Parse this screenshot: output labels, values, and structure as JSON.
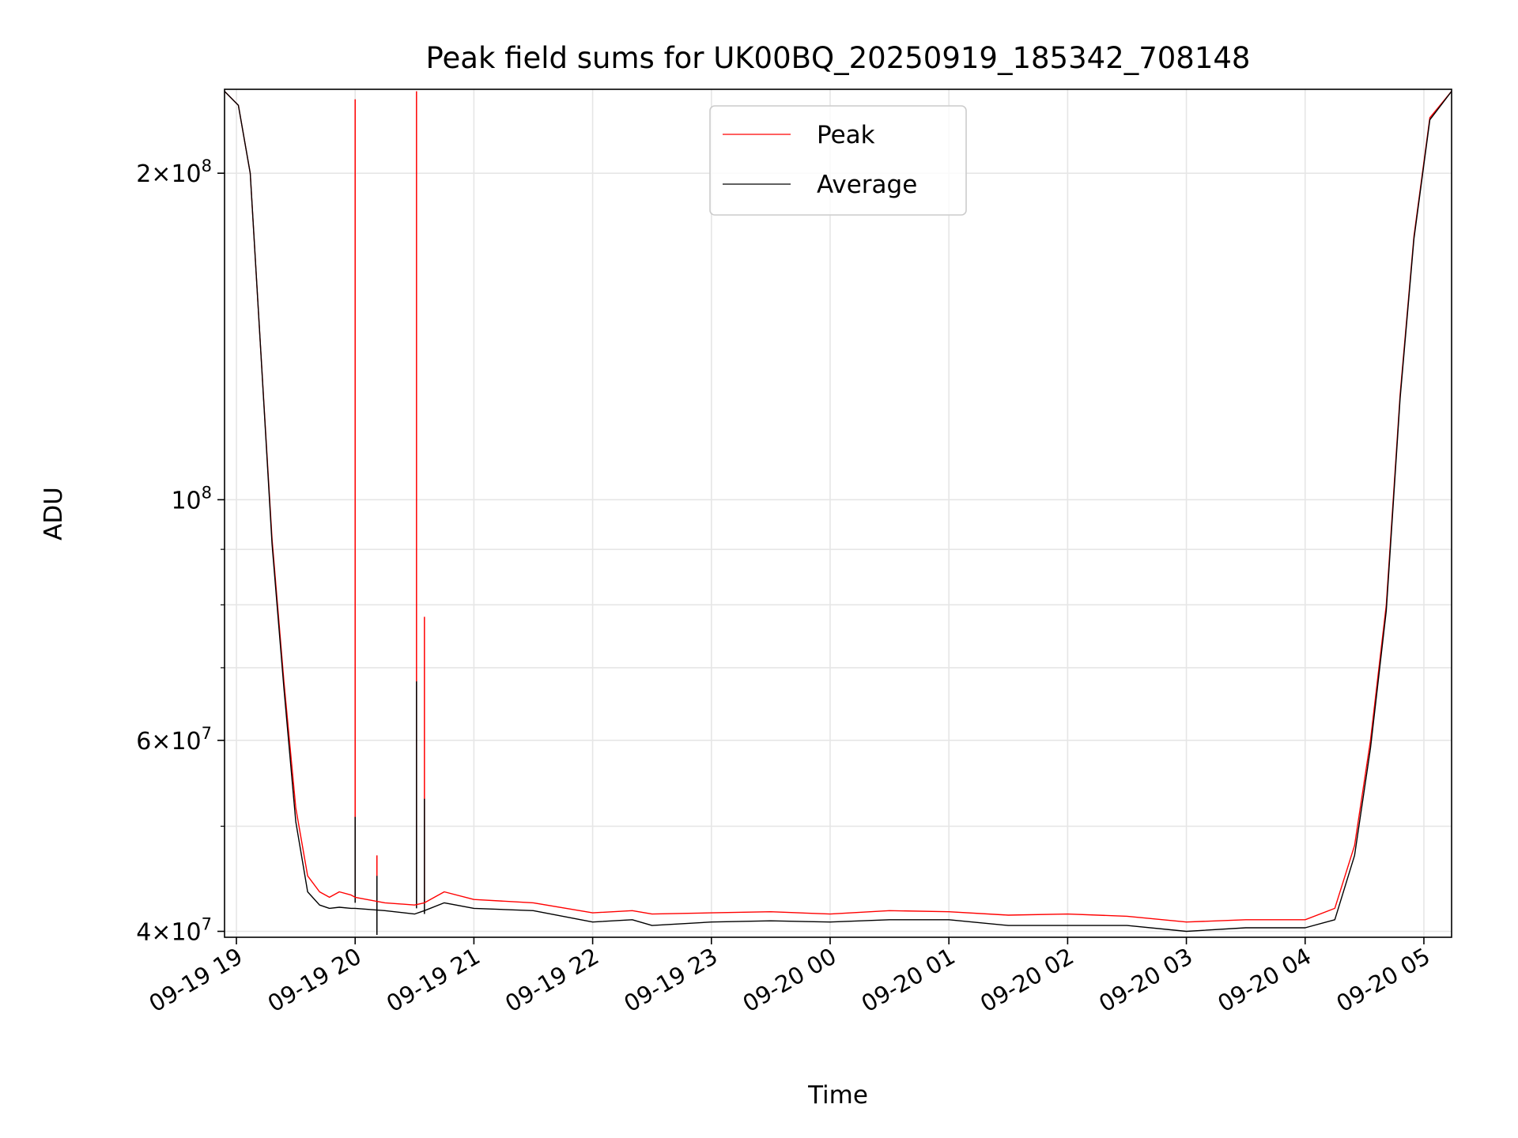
{
  "chart_data": {
    "type": "line",
    "title": "Peak field sums for UK00BQ_20250919_185342_708148",
    "xlabel": "Time",
    "ylabel": "ADU",
    "yscale": "log",
    "grid": true,
    "legend_placement": "upper center",
    "xlim": [
      "2025-09-19 18:54",
      "2025-09-20 05:14"
    ],
    "ylim": [
      39500000,
      239000000
    ],
    "x_ticks": [
      "09-19 19",
      "09-19 20",
      "09-19 21",
      "09-19 22",
      "09-19 23",
      "09-20 00",
      "09-20 01",
      "09-20 02",
      "09-20 03",
      "09-20 04",
      "09-20 05"
    ],
    "y_major_ticks": [
      {
        "value": 40000000,
        "mantissa": "4",
        "exponent": "7"
      },
      {
        "value": 60000000,
        "mantissa": "6",
        "exponent": "7"
      },
      {
        "value": 100000000,
        "mantissa": "",
        "exponent": "8"
      },
      {
        "value": 200000000,
        "mantissa": "2",
        "exponent": "8"
      }
    ],
    "y_minor_ticks": [
      50000000,
      70000000,
      80000000,
      90000000
    ],
    "series": [
      {
        "name": "Peak",
        "color": "#ff0000",
        "x": [
          "2025-09-19 18:54",
          "2025-09-19 19:01",
          "2025-09-19 19:07",
          "2025-09-19 19:12",
          "2025-09-19 19:18",
          "2025-09-19 19:24",
          "2025-09-19 19:30",
          "2025-09-19 19:36",
          "2025-09-19 19:42",
          "2025-09-19 19:47",
          "2025-09-19 19:52",
          "2025-09-19 19:58",
          "2025-09-19 20:00",
          "2025-09-19 20:15",
          "2025-09-19 20:30",
          "2025-09-19 20:35",
          "2025-09-19 20:45",
          "2025-09-19 21:00",
          "2025-09-19 21:30",
          "2025-09-19 22:00",
          "2025-09-19 22:20",
          "2025-09-19 22:30",
          "2025-09-19 23:00",
          "2025-09-19 23:30",
          "2025-09-20 00:00",
          "2025-09-20 00:30",
          "2025-09-20 01:00",
          "2025-09-20 01:30",
          "2025-09-20 02:00",
          "2025-09-20 02:30",
          "2025-09-20 03:00",
          "2025-09-20 03:30",
          "2025-09-20 04:00",
          "2025-09-20 04:15",
          "2025-09-20 04:25",
          "2025-09-20 04:33",
          "2025-09-20 04:41",
          "2025-09-20 04:48",
          "2025-09-20 04:55",
          "2025-09-20 05:03",
          "2025-09-20 05:14"
        ],
        "y": [
          238000000,
          231000000,
          200000000,
          140000000,
          92000000,
          68000000,
          52000000,
          45000000,
          43500000,
          43000000,
          43500000,
          43200000,
          43000000,
          42500000,
          42300000,
          42500000,
          43500000,
          42800000,
          42500000,
          41600000,
          41800000,
          41500000,
          41600000,
          41700000,
          41500000,
          41800000,
          41700000,
          41400000,
          41500000,
          41300000,
          40800000,
          41000000,
          41000000,
          42000000,
          48000000,
          60000000,
          80000000,
          125000000,
          175000000,
          225000000,
          238000000
        ]
      },
      {
        "name": "Average",
        "color": "#000000",
        "x": [
          "2025-09-19 18:54",
          "2025-09-19 19:01",
          "2025-09-19 19:07",
          "2025-09-19 19:12",
          "2025-09-19 19:18",
          "2025-09-19 19:24",
          "2025-09-19 19:30",
          "2025-09-19 19:36",
          "2025-09-19 19:42",
          "2025-09-19 19:47",
          "2025-09-19 19:52",
          "2025-09-19 19:58",
          "2025-09-19 20:00",
          "2025-09-19 20:15",
          "2025-09-19 20:30",
          "2025-09-19 20:35",
          "2025-09-19 20:45",
          "2025-09-19 21:00",
          "2025-09-19 21:30",
          "2025-09-19 22:00",
          "2025-09-19 22:20",
          "2025-09-19 22:30",
          "2025-09-19 23:00",
          "2025-09-19 23:30",
          "2025-09-20 00:00",
          "2025-09-20 00:30",
          "2025-09-20 01:00",
          "2025-09-20 01:30",
          "2025-09-20 02:00",
          "2025-09-20 02:30",
          "2025-09-20 03:00",
          "2025-09-20 03:30",
          "2025-09-20 04:00",
          "2025-09-20 04:15",
          "2025-09-20 04:25",
          "2025-09-20 04:33",
          "2025-09-20 04:41",
          "2025-09-20 04:48",
          "2025-09-20 04:55",
          "2025-09-20 05:03",
          "2025-09-20 05:14"
        ],
        "y": [
          238000000,
          231000000,
          200000000,
          140000000,
          91000000,
          67000000,
          50500000,
          43500000,
          42300000,
          42000000,
          42100000,
          42000000,
          42000000,
          41800000,
          41500000,
          41800000,
          42500000,
          42000000,
          41800000,
          40800000,
          41000000,
          40500000,
          40800000,
          40900000,
          40800000,
          41000000,
          41000000,
          40500000,
          40500000,
          40500000,
          40000000,
          40300000,
          40300000,
          41000000,
          47000000,
          59000000,
          79000000,
          124000000,
          174000000,
          224000000,
          238000000
        ]
      }
    ],
    "spikes": [
      {
        "series": "Peak",
        "x": "2025-09-19 20:00",
        "base": 43000000,
        "top": 234000000
      },
      {
        "series": "Peak",
        "x": "2025-09-19 20:31",
        "base": 42500000,
        "top": 238000000
      },
      {
        "series": "Peak",
        "x": "2025-09-19 20:35",
        "base": 42500000,
        "top": 78000000
      },
      {
        "series": "Peak",
        "x": "2025-09-19 20:11",
        "base": 42500000,
        "top": 47000000
      },
      {
        "series": "Average",
        "x": "2025-09-19 20:00",
        "base": 42500000,
        "top": 51000000
      },
      {
        "series": "Average",
        "x": "2025-09-19 20:31",
        "base": 42000000,
        "top": 68000000
      },
      {
        "series": "Average",
        "x": "2025-09-19 20:35",
        "base": 41500000,
        "top": 53000000
      },
      {
        "series": "Average",
        "x": "2025-09-19 20:11",
        "base": 39700000,
        "top": 45000000
      }
    ]
  }
}
